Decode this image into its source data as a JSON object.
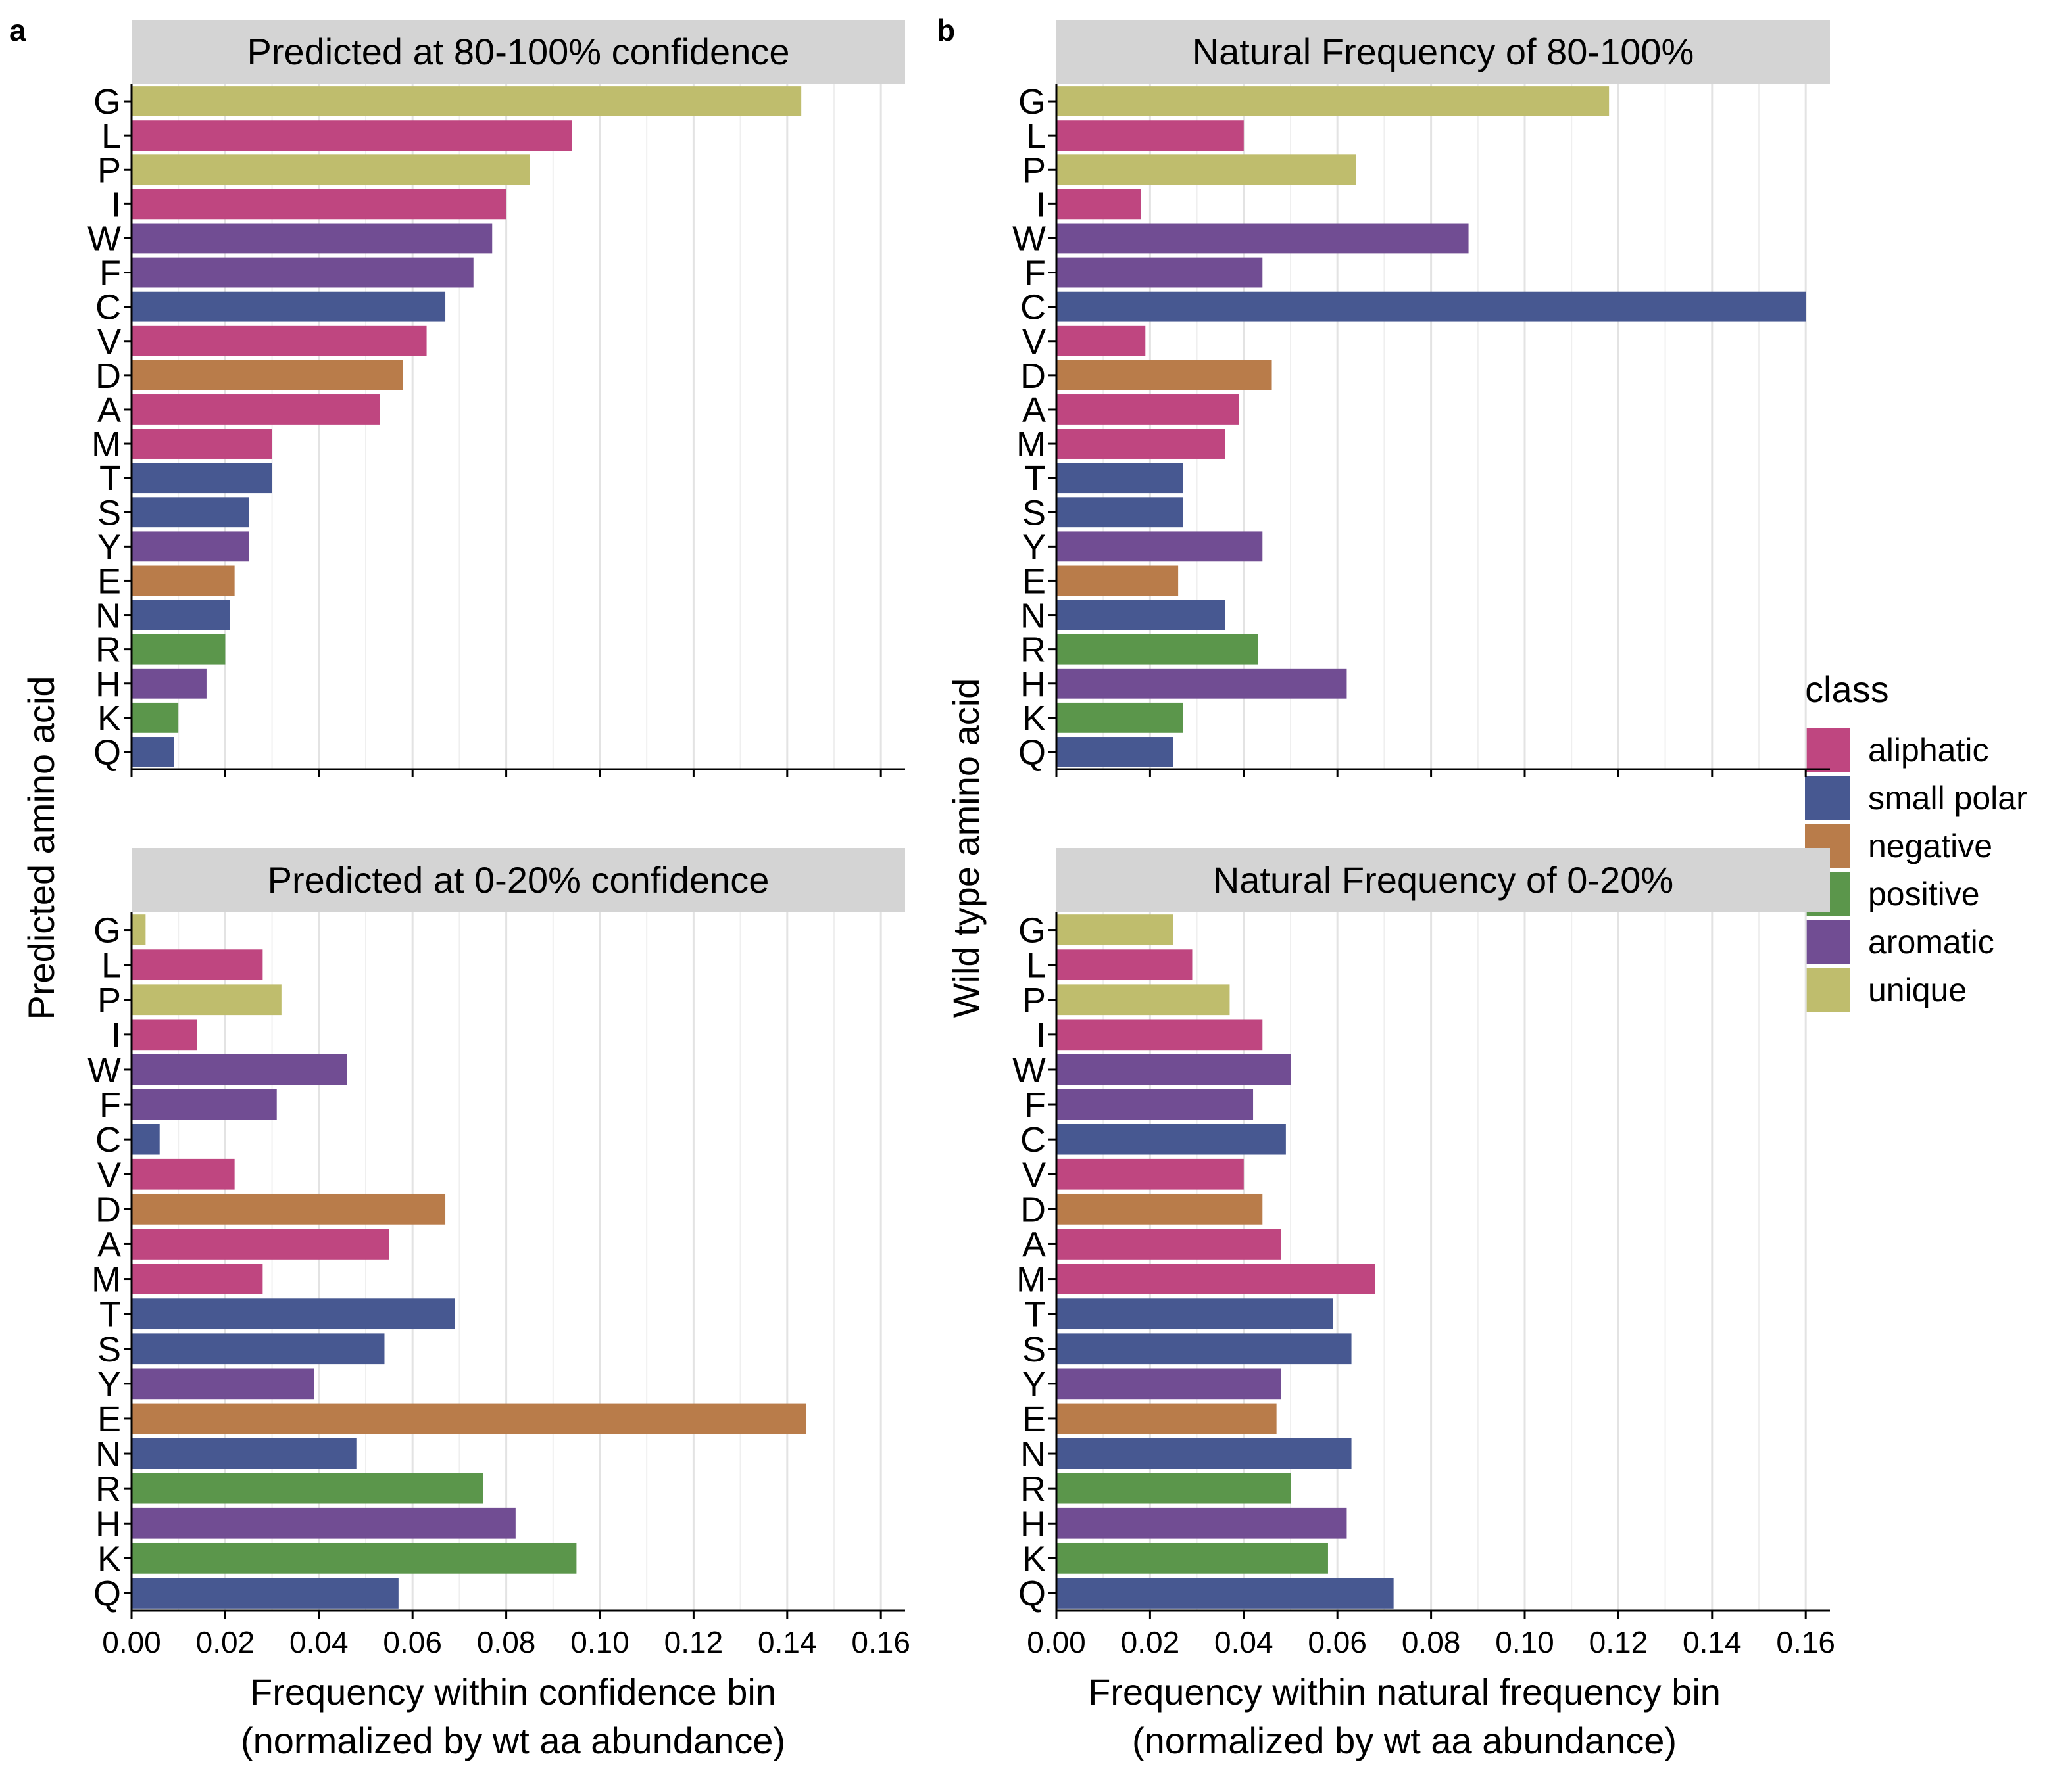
{
  "panel_labels": [
    "a",
    "b"
  ],
  "y_axis_titles": [
    "Predicted amino acid",
    "Wild type amino acid"
  ],
  "x_axis_titles": [
    [
      "Frequency within confidence bin",
      "(normalized by wt aa abundance)"
    ],
    [
      "Frequency within natural frequency bin",
      "(normalized by wt aa abundance)"
    ]
  ],
  "x_tick_labels": [
    "0.00",
    "0.02",
    "0.04",
    "0.06",
    "0.08",
    "0.10",
    "0.12",
    "0.14",
    "0.16"
  ],
  "legend": {
    "title": "class",
    "items": [
      {
        "label": "aliphatic",
        "color": "#bf4680"
      },
      {
        "label": "small polar",
        "color": "#475891"
      },
      {
        "label": "negative",
        "color": "#b97c4a"
      },
      {
        "label": "positive",
        "color": "#5b964b"
      },
      {
        "label": "aromatic",
        "color": "#714d93"
      },
      {
        "label": "unique",
        "color": "#bfbd6d"
      }
    ]
  },
  "chart_data": [
    {
      "type": "bar",
      "orientation": "horizontal",
      "title": "Predicted at 80-100% confidence",
      "ylabel": "Predicted amino acid",
      "xlabel": "Frequency within confidence bin (normalized by wt aa abundance)",
      "xlim": [
        0,
        0.165
      ],
      "grid": true,
      "categories": [
        "G",
        "L",
        "P",
        "I",
        "W",
        "F",
        "C",
        "V",
        "D",
        "A",
        "M",
        "T",
        "S",
        "Y",
        "E",
        "N",
        "R",
        "H",
        "K",
        "Q"
      ],
      "classes": [
        "unique",
        "aliphatic",
        "unique",
        "aliphatic",
        "aromatic",
        "aromatic",
        "small polar",
        "aliphatic",
        "negative",
        "aliphatic",
        "aliphatic",
        "small polar",
        "small polar",
        "aromatic",
        "negative",
        "small polar",
        "positive",
        "aromatic",
        "positive",
        "small polar"
      ],
      "values": [
        0.143,
        0.094,
        0.085,
        0.08,
        0.077,
        0.073,
        0.067,
        0.063,
        0.058,
        0.053,
        0.03,
        0.03,
        0.025,
        0.025,
        0.022,
        0.021,
        0.02,
        0.016,
        0.01,
        0.009
      ]
    },
    {
      "type": "bar",
      "orientation": "horizontal",
      "title": "Predicted at 0-20% confidence",
      "ylabel": "Predicted amino acid",
      "xlabel": "Frequency within confidence bin (normalized by wt aa abundance)",
      "xlim": [
        0,
        0.165
      ],
      "grid": true,
      "categories": [
        "G",
        "L",
        "P",
        "I",
        "W",
        "F",
        "C",
        "V",
        "D",
        "A",
        "M",
        "T",
        "S",
        "Y",
        "E",
        "N",
        "R",
        "H",
        "K",
        "Q"
      ],
      "classes": [
        "unique",
        "aliphatic",
        "unique",
        "aliphatic",
        "aromatic",
        "aromatic",
        "small polar",
        "aliphatic",
        "negative",
        "aliphatic",
        "aliphatic",
        "small polar",
        "small polar",
        "aromatic",
        "negative",
        "small polar",
        "positive",
        "aromatic",
        "positive",
        "small polar"
      ],
      "values": [
        0.003,
        0.028,
        0.032,
        0.014,
        0.046,
        0.031,
        0.006,
        0.022,
        0.067,
        0.055,
        0.028,
        0.069,
        0.054,
        0.039,
        0.144,
        0.048,
        0.075,
        0.082,
        0.095,
        0.057
      ]
    },
    {
      "type": "bar",
      "orientation": "horizontal",
      "title": "Natural Frequency of 80-100%",
      "ylabel": "Wild type amino acid",
      "xlabel": "Frequency within natural frequency bin (normalized by wt aa abundance)",
      "xlim": [
        0,
        0.165
      ],
      "grid": true,
      "categories": [
        "G",
        "L",
        "P",
        "I",
        "W",
        "F",
        "C",
        "V",
        "D",
        "A",
        "M",
        "T",
        "S",
        "Y",
        "E",
        "N",
        "R",
        "H",
        "K",
        "Q"
      ],
      "classes": [
        "unique",
        "aliphatic",
        "unique",
        "aliphatic",
        "aromatic",
        "aromatic",
        "small polar",
        "aliphatic",
        "negative",
        "aliphatic",
        "aliphatic",
        "small polar",
        "small polar",
        "aromatic",
        "negative",
        "small polar",
        "positive",
        "aromatic",
        "positive",
        "small polar"
      ],
      "values": [
        0.118,
        0.04,
        0.064,
        0.018,
        0.088,
        0.044,
        0.16,
        0.019,
        0.046,
        0.039,
        0.036,
        0.027,
        0.027,
        0.044,
        0.026,
        0.036,
        0.043,
        0.062,
        0.027,
        0.025
      ]
    },
    {
      "type": "bar",
      "orientation": "horizontal",
      "title": "Natural Frequency of 0-20%",
      "ylabel": "Wild type amino acid",
      "xlabel": "Frequency within natural frequency bin (normalized by wt aa abundance)",
      "xlim": [
        0,
        0.165
      ],
      "grid": true,
      "categories": [
        "G",
        "L",
        "P",
        "I",
        "W",
        "F",
        "C",
        "V",
        "D",
        "A",
        "M",
        "T",
        "S",
        "Y",
        "E",
        "N",
        "R",
        "H",
        "K",
        "Q"
      ],
      "classes": [
        "unique",
        "aliphatic",
        "unique",
        "aliphatic",
        "aromatic",
        "aromatic",
        "small polar",
        "aliphatic",
        "negative",
        "aliphatic",
        "aliphatic",
        "small polar",
        "small polar",
        "aromatic",
        "negative",
        "small polar",
        "positive",
        "aromatic",
        "positive",
        "small polar"
      ],
      "values": [
        0.025,
        0.029,
        0.037,
        0.044,
        0.05,
        0.042,
        0.049,
        0.04,
        0.044,
        0.048,
        0.068,
        0.059,
        0.063,
        0.048,
        0.047,
        0.063,
        0.05,
        0.062,
        0.058,
        0.072
      ]
    }
  ]
}
